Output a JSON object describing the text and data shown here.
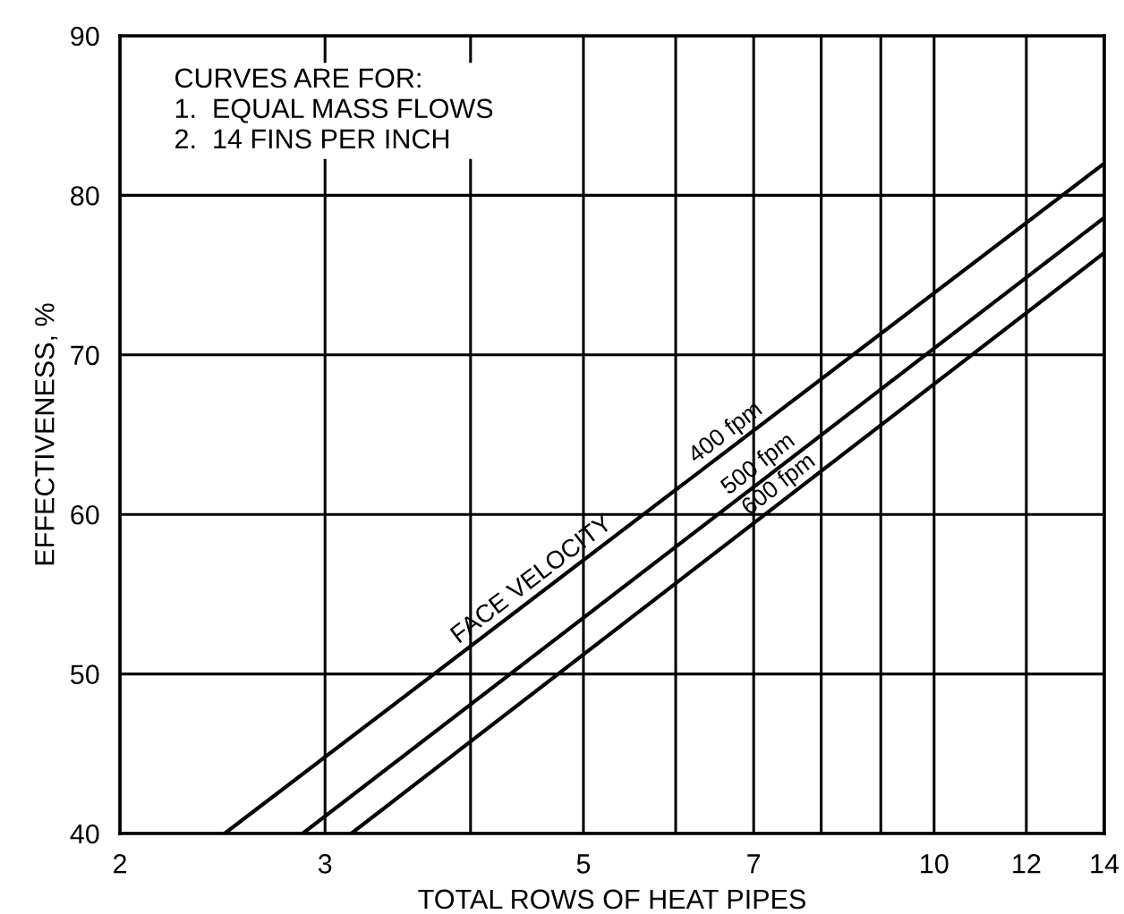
{
  "chart_data": {
    "type": "line",
    "xlabel": "TOTAL ROWS OF HEAT PIPES",
    "ylabel": "EFFECTIVENESS, %",
    "log": "x",
    "grid": true,
    "legend": false,
    "marker": "none",
    "line_style": "solid",
    "xlim": [
      2,
      14
    ],
    "ylim": [
      40,
      90
    ],
    "xticks": [
      2,
      3,
      {
        "value": 4,
        "label": null
      },
      5,
      {
        "value": 6,
        "label": null
      },
      7,
      {
        "value": 8,
        "label": null
      },
      {
        "value": 9,
        "label": null
      },
      10,
      12,
      14
    ],
    "yticks": [
      40,
      50,
      60,
      70,
      80,
      90
    ],
    "series": [
      {
        "name": "400 fpm",
        "color": "#000000",
        "x": [
          2.46,
          14
        ],
        "values": [
          40,
          82.0
        ]
      },
      {
        "name": "500 fpm",
        "color": "#000000",
        "x": [
          2.87,
          14
        ],
        "values": [
          40,
          78.6
        ]
      },
      {
        "name": "600 fpm",
        "color": "#000000",
        "x": [
          3.16,
          14
        ],
        "values": [
          40,
          76.4
        ]
      }
    ],
    "annotations": [
      "CURVES ARE FOR:\n1.  EQUAL MASS FLOWS\n2.  14 FINS PER INCH",
      "FACE VELOCITY"
    ]
  }
}
